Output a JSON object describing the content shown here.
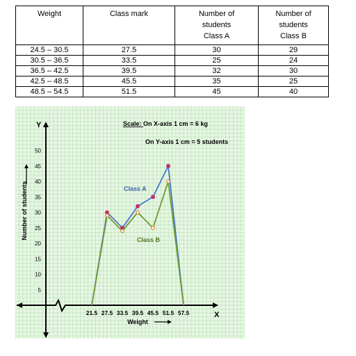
{
  "table": {
    "headers": [
      "Weight",
      "Class mark",
      "Number of\nstudents\nClass A",
      "Number of\nstudents\nClass B"
    ],
    "rows": [
      [
        "24.5 – 30.5",
        "27.5",
        "30",
        "29"
      ],
      [
        "30.5 – 36.5",
        "33.5",
        "25",
        "24"
      ],
      [
        "36.5 – 42.5",
        "39.5",
        "32",
        "30"
      ],
      [
        "42.5 – 48.5",
        "45.5",
        "35",
        "25"
      ],
      [
        "48.5 – 54.5",
        "51.5",
        "45",
        "40"
      ]
    ]
  },
  "chart_data": {
    "type": "line",
    "scale_title": "Scale:",
    "scale_x": "On X-axis 1 cm = 6 kg",
    "scale_y": "On Y-axis 1 cm = 5 students",
    "x_axis_letter": "X",
    "y_axis_letter": "Y",
    "xlabel": "Weight",
    "ylabel": "Number of students",
    "x_ticks": [
      "21.5",
      "27.5",
      "33.5",
      "39.5",
      "45.5",
      "51.5",
      "57.5"
    ],
    "y_ticks": [
      5,
      10,
      15,
      20,
      25,
      30,
      35,
      40,
      45,
      50
    ],
    "x": [
      21.5,
      27.5,
      33.5,
      39.5,
      45.5,
      51.5,
      57.5
    ],
    "series": [
      {
        "name": "Class A",
        "values": [
          0,
          30,
          25,
          32,
          35,
          45,
          0
        ],
        "line_color": "#4a78c9",
        "marker_color": "#c0306a"
      },
      {
        "name": "Class B",
        "values": [
          0,
          29,
          24,
          30,
          25,
          40,
          0
        ],
        "line_color": "#6e9a34",
        "marker_color": "#e07c20"
      }
    ],
    "grid": true,
    "background": "#e8f6e4",
    "grid_color": "#a6dca6"
  }
}
